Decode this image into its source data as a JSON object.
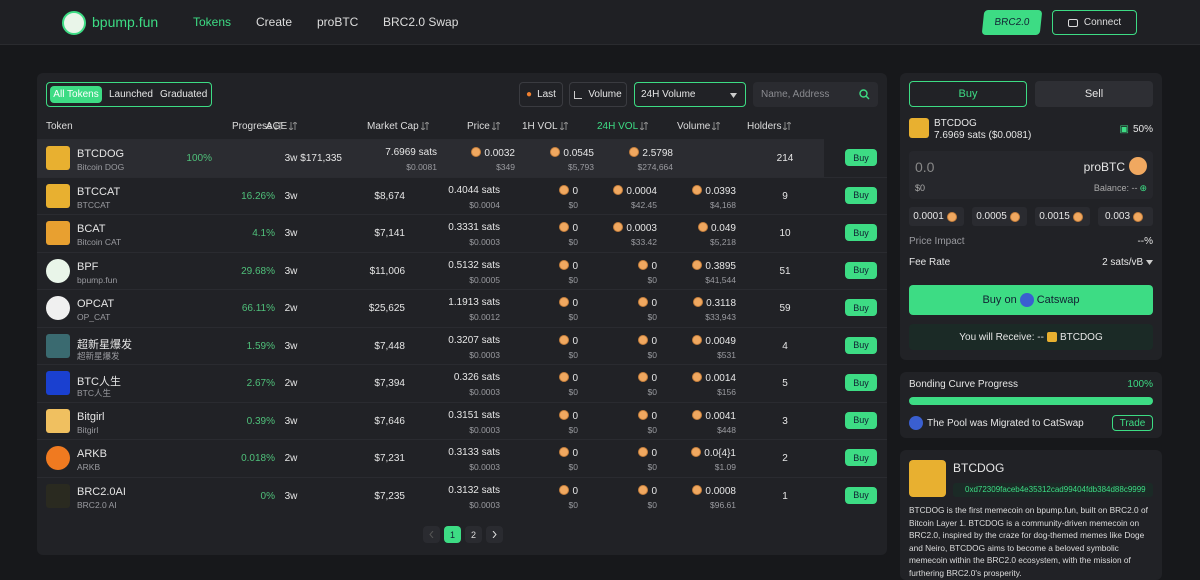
{
  "header": {
    "logo": "bpump.fun",
    "nav": [
      "Tokens",
      "Create",
      "proBTC",
      "BRC2.0 Swap"
    ],
    "network": "BRC2.0",
    "connect": "Connect"
  },
  "filters": {
    "tabs": [
      "All Tokens",
      "Launched",
      "Graduated"
    ],
    "sorts": [
      "Last",
      "Volume"
    ],
    "select": "24H Volume",
    "search": "Name, Address"
  },
  "table": {
    "columns": [
      "Token",
      "Progress",
      "AGE",
      "Market Cap",
      "Price",
      "1H VOL",
      "24H VOL",
      "Volume",
      "Holders"
    ],
    "rows": [
      {
        "name": "BTCDOG",
        "sub": "Bitcoin DOG",
        "progress": "100%",
        "age": "3w",
        "mcap": "$171,335",
        "price": "7.6969 sats",
        "price_usd": "$0.0081",
        "vol1h": "0.0032",
        "vol1h_usd": "$349",
        "vol24h": "0.0545",
        "vol24h_usd": "$5,793",
        "volume": "2.5798",
        "volume_usd": "$274,664",
        "holders": "214",
        "action": "Buy"
      },
      {
        "name": "BTCCAT",
        "sub": "BTCCAT",
        "progress": "16.26%",
        "age": "3w",
        "mcap": "$8,674",
        "price": "0.4044 sats",
        "price_usd": "$0.0004",
        "vol1h": "0",
        "vol1h_usd": "$0",
        "vol24h": "0.0004",
        "vol24h_usd": "$42.45",
        "volume": "0.0393",
        "volume_usd": "$4,168",
        "holders": "9",
        "action": "Buy"
      },
      {
        "name": "BCAT",
        "sub": "Bitcoin CAT",
        "progress": "4.1%",
        "age": "3w",
        "mcap": "$7,141",
        "price": "0.3331 sats",
        "price_usd": "$0.0003",
        "vol1h": "0",
        "vol1h_usd": "$0",
        "vol24h": "0.0003",
        "vol24h_usd": "$33.42",
        "volume": "0.049",
        "volume_usd": "$5,218",
        "holders": "10",
        "action": "Buy"
      },
      {
        "name": "BPF",
        "sub": "bpump.fun",
        "progress": "29.68%",
        "age": "3w",
        "mcap": "$11,006",
        "price": "0.5132 sats",
        "price_usd": "$0.0005",
        "vol1h": "0",
        "vol1h_usd": "$0",
        "vol24h": "0",
        "vol24h_usd": "$0",
        "volume": "0.3895",
        "volume_usd": "$41,544",
        "holders": "51",
        "action": "Buy"
      },
      {
        "name": "OPCAT",
        "sub": "OP_CAT",
        "progress": "66.11%",
        "age": "2w",
        "mcap": "$25,625",
        "price": "1.1913 sats",
        "price_usd": "$0.0012",
        "vol1h": "0",
        "vol1h_usd": "$0",
        "vol24h": "0",
        "vol24h_usd": "$0",
        "volume": "0.3118",
        "volume_usd": "$33,943",
        "holders": "59",
        "action": "Buy"
      },
      {
        "name": "超新星爆发",
        "sub": "超新星爆发",
        "progress": "1.59%",
        "age": "3w",
        "mcap": "$7,448",
        "price": "0.3207 sats",
        "price_usd": "$0.0003",
        "vol1h": "0",
        "vol1h_usd": "$0",
        "vol24h": "0",
        "vol24h_usd": "$0",
        "volume": "0.0049",
        "volume_usd": "$531",
        "holders": "4",
        "action": "Buy"
      },
      {
        "name": "BTC人生",
        "sub": "BTC人生",
        "progress": "2.67%",
        "age": "2w",
        "mcap": "$7,394",
        "price": "0.326 sats",
        "price_usd": "$0.0003",
        "vol1h": "0",
        "vol1h_usd": "$0",
        "vol24h": "0",
        "vol24h_usd": "$0",
        "volume": "0.0014",
        "volume_usd": "$156",
        "holders": "5",
        "action": "Buy"
      },
      {
        "name": "Bitgirl",
        "sub": "Bitgirl",
        "progress": "0.39%",
        "age": "3w",
        "mcap": "$7,646",
        "price": "0.3151 sats",
        "price_usd": "$0.0003",
        "vol1h": "0",
        "vol1h_usd": "$0",
        "vol24h": "0",
        "vol24h_usd": "$0",
        "volume": "0.0041",
        "volume_usd": "$448",
        "holders": "3",
        "action": "Buy"
      },
      {
        "name": "ARKB",
        "sub": "ARKB",
        "progress": "0.018%",
        "age": "2w",
        "mcap": "$7,231",
        "price": "0.3133 sats",
        "price_usd": "$0.0003",
        "vol1h": "0",
        "vol1h_usd": "$0",
        "vol24h": "0",
        "vol24h_usd": "$0",
        "volume": "0.0{4}1",
        "volume_usd": "$1.09",
        "holders": "2",
        "action": "Buy"
      },
      {
        "name": "BRC2.0AI",
        "sub": "BRC2.0 AI",
        "progress": "0%",
        "age": "3w",
        "mcap": "$7,235",
        "price": "0.3132 sats",
        "price_usd": "$0.0003",
        "vol1h": "0",
        "vol1h_usd": "$0",
        "vol24h": "0",
        "vol24h_usd": "$0",
        "volume": "0.0008",
        "volume_usd": "$96.61",
        "holders": "1",
        "action": "Buy"
      }
    ]
  },
  "pagination": [
    "1",
    "2"
  ],
  "trade": {
    "tabs": [
      "Buy",
      "Sell"
    ],
    "token": "BTCDOG",
    "price": "7.6969 sats ($0.0081)",
    "percent": "50%",
    "amount": "0.0",
    "currency": "proBTC",
    "usd": "$0",
    "balance": "Balance: --",
    "presets": [
      "0.0001",
      "0.0005",
      "0.0015",
      "0.003"
    ],
    "impact_label": "Price Impact",
    "impact": "--%",
    "fee_label": "Fee Rate",
    "fee": "2 sats/vB",
    "buy_on": "Buy on",
    "venue": "Catswap",
    "receive": "You will Receive: --",
    "receive_token": "BTCDOG"
  },
  "bonding": {
    "title": "Bonding Curve Progress",
    "percent": "100%",
    "status": "The Pool was Migrated to CatSwap",
    "action": "Trade"
  },
  "info": {
    "name": "BTCDOG",
    "address": "0xd72309faceb4e35312cad99404fdb384d88c9999",
    "description": "BTCDOG is the first memecoin on bpump.fun, built on BRC2.0 of Bitcoin Layer 1. BTCDOG is a community-driven memecoin on BRC2.0, inspired by the craze for dog-themed memes like Doge and Neiro, BTCDOG aims to become a beloved symbolic memecoin within the BRC2.0 ecosystem, with the mission of furthering BRC2.0's prosperity."
  }
}
